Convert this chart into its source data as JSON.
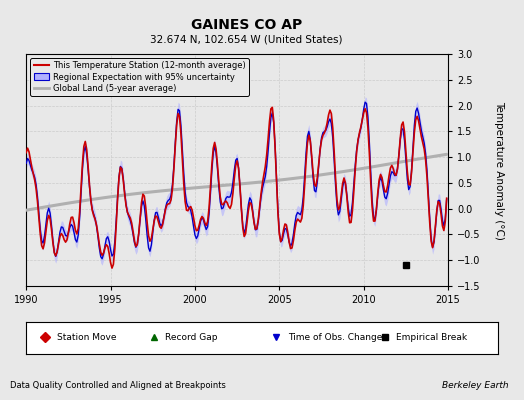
{
  "title": "GAINES CO AP",
  "subtitle": "32.674 N, 102.654 W (United States)",
  "xlabel_note": "Data Quality Controlled and Aligned at Breakpoints",
  "credit": "Berkeley Earth",
  "ylabel": "Temperature Anomaly (°C)",
  "xlim": [
    1990,
    2015
  ],
  "ylim": [
    -1.5,
    3.0
  ],
  "yticks": [
    -1.5,
    -1.0,
    -0.5,
    0.0,
    0.5,
    1.0,
    1.5,
    2.0,
    2.5,
    3.0
  ],
  "xticks": [
    1990,
    1995,
    2000,
    2005,
    2010,
    2015
  ],
  "line_red_color": "#cc0000",
  "line_blue_color": "#0000cc",
  "fill_blue_color": "#b0b0ff",
  "line_gray_color": "#b0b0b0",
  "background_color": "#e8e8e8",
  "grid_color": "#cccccc",
  "legend_items": [
    "This Temperature Station (12-month average)",
    "Regional Expectation with 95% uncertainty",
    "Global Land (5-year average)"
  ],
  "empirical_break_year": 2012.5,
  "empirical_break_y": -1.1,
  "figsize": [
    5.24,
    4.0
  ],
  "dpi": 100
}
